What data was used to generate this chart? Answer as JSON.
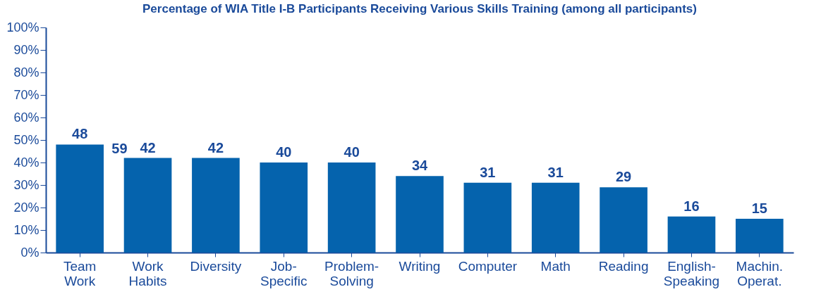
{
  "chart_data": {
    "type": "bar",
    "title": "Percentage of WIA Title I-B Participants Receiving Various Skills Training (among all participants)",
    "categories": [
      "Team Work",
      "Work Habits",
      "Diversity",
      "Job-Specific",
      "Problem-Solving",
      "Writing",
      "Computer",
      "Math",
      "Reading",
      "English-Speaking",
      "Machin. Operat."
    ],
    "values": [
      48,
      42,
      42,
      40,
      40,
      34,
      31,
      31,
      29,
      16,
      15
    ],
    "color": "#0563ad",
    "data_labels": true,
    "grid": false,
    "ylim": [
      0,
      100
    ],
    "yticks": [
      {
        "value": 0,
        "label": "0%"
      },
      {
        "value": 10,
        "label": "10%"
      },
      {
        "value": 20,
        "label": "20%"
      },
      {
        "value": 30,
        "label": "30%"
      },
      {
        "value": 40,
        "label": "40%"
      },
      {
        "value": 50,
        "label": "50%"
      },
      {
        "value": 60,
        "label": "60%"
      },
      {
        "value": 70,
        "label": "70%"
      },
      {
        "value": 80,
        "label": "80%"
      },
      {
        "value": 90,
        "label": "90%"
      },
      {
        "value": 100,
        "label": "100%"
      }
    ],
    "annotations": [
      "59"
    ]
  }
}
